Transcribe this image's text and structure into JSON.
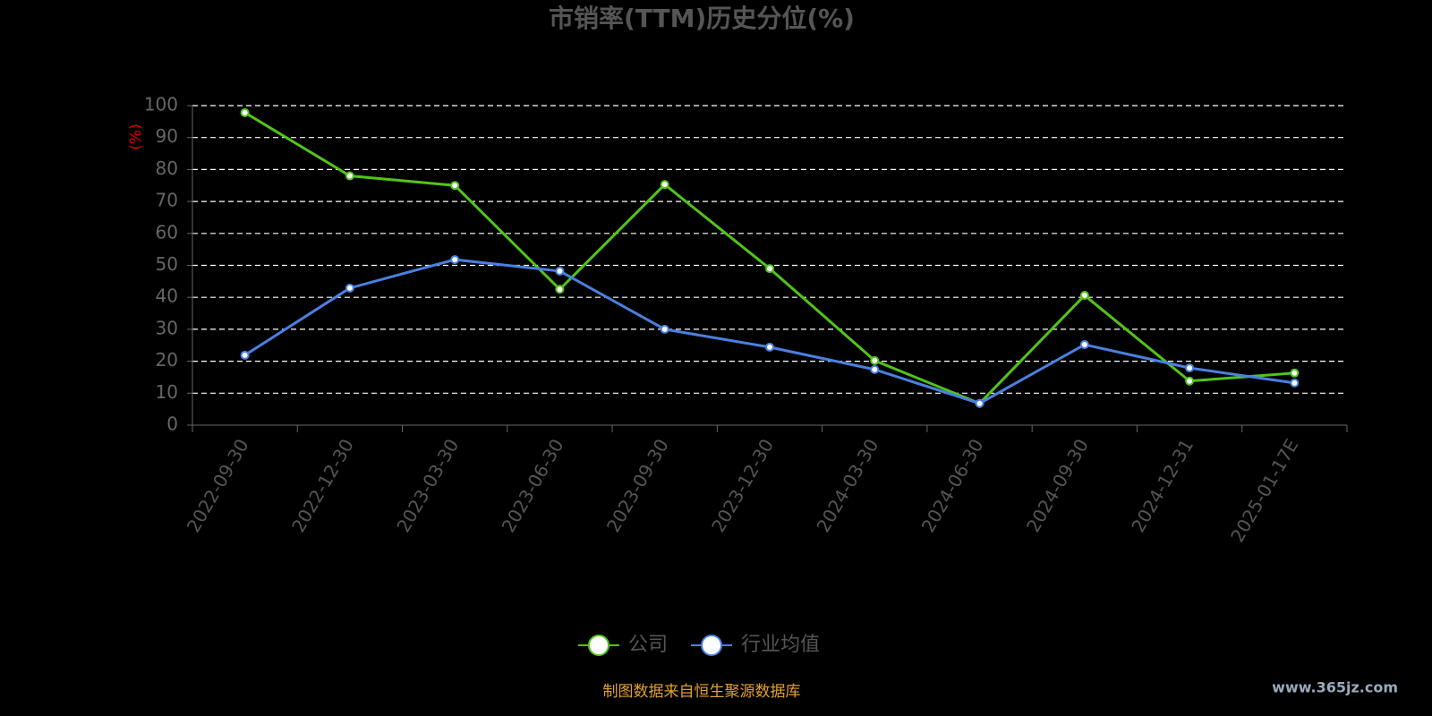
{
  "chart_data": {
    "type": "line",
    "title": "市销率(TTM)历史分位(%)",
    "y_label": "(%)",
    "categories": [
      "2022-09-30",
      "2022-12-30",
      "2023-03-30",
      "2023-06-30",
      "2023-09-30",
      "2023-12-30",
      "2024-03-30",
      "2024-06-30",
      "2024-09-30",
      "2024-12-31",
      "2025-01-17E"
    ],
    "series": [
      {
        "name": "公司",
        "color": "#52c41a",
        "values": [
          97.8,
          78,
          75,
          42.5,
          75.3,
          49,
          20.2,
          6.8,
          40.6,
          13.8,
          16.3
        ]
      },
      {
        "name": "行业均值",
        "color": "#4a80e0",
        "values": [
          21.9,
          42.9,
          51.8,
          48.2,
          30,
          24.4,
          17.4,
          6.8,
          25.2,
          17.9,
          13.2
        ]
      }
    ],
    "ylim": [
      0,
      100
    ],
    "yticks": [
      0,
      10,
      20,
      30,
      40,
      50,
      60,
      70,
      80,
      90,
      100
    ],
    "grid": true,
    "legend": "bottom",
    "source_note": "制图数据来自恒生聚源数据库",
    "watermark": "www.365jz.com"
  }
}
